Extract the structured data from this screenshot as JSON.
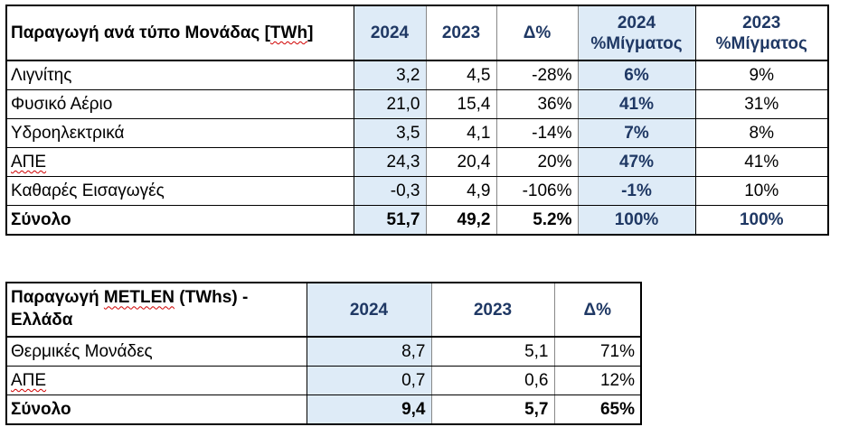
{
  "table1": {
    "header": {
      "title_prefix": "Παραγωγή ανά τύπο Μονάδας [",
      "title_unit": "TWh",
      "title_suffix": "]",
      "col_2024": "2024",
      "col_2023": "2023",
      "col_delta": "Δ%",
      "col_mix2024_line1": "2024",
      "col_mix2024_line2": "%Μίγματος",
      "col_mix2023_line1": "2023",
      "col_mix2023_line2": "%Μίγματος"
    },
    "rows": [
      {
        "label": "Λιγνίτης",
        "v2024": "3,2",
        "v2023": "4,5",
        "delta": "-28%",
        "mix2024": "6%",
        "mix2023": "9%"
      },
      {
        "label": "Φυσικό Αέριο",
        "v2024": "21,0",
        "v2023": "15,4",
        "delta": "36%",
        "mix2024": "41%",
        "mix2023": "31%"
      },
      {
        "label": "Υδροηλεκτρικά",
        "v2024": "3,5",
        "v2023": "4,1",
        "delta": "-14%",
        "mix2024": "7%",
        "mix2023": "8%"
      },
      {
        "label": "ΑΠΕ",
        "v2024": "24,3",
        "v2023": "20,4",
        "delta": "20%",
        "mix2024": "47%",
        "mix2023": "41%"
      },
      {
        "label": "Καθαρές Εισαγωγές",
        "v2024": "-0,3",
        "v2023": "4,9",
        "delta": "-106%",
        "mix2024": "-1%",
        "mix2023": "10%"
      },
      {
        "label": "Σύνολο",
        "v2024": "51,7",
        "v2023": "49,2",
        "delta": "5.2%",
        "mix2024": "100%",
        "mix2023": "100%"
      }
    ]
  },
  "table2": {
    "header": {
      "title_prefix": "Παραγωγή ",
      "title_brand": "METLEN",
      "title_suffix": " (TWhs) -",
      "title_line2": "Ελλάδα",
      "col_2024": "2024",
      "col_2023": "2023",
      "col_delta": "Δ%"
    },
    "rows": [
      {
        "label": "Θερμικές Μονάδες",
        "v2024": "8,7",
        "v2023": "5,1",
        "delta": "71%"
      },
      {
        "label": "ΑΠΕ",
        "v2024": "0,7",
        "v2023": "0,6",
        "delta": "12%"
      },
      {
        "label": "Σύνολο",
        "v2024": "9,4",
        "v2023": "5,7",
        "delta": "65%"
      }
    ]
  },
  "colors": {
    "highlight": "#deebf7",
    "header_text": "#1f3864",
    "spellcheck_underline": "#d00000"
  }
}
